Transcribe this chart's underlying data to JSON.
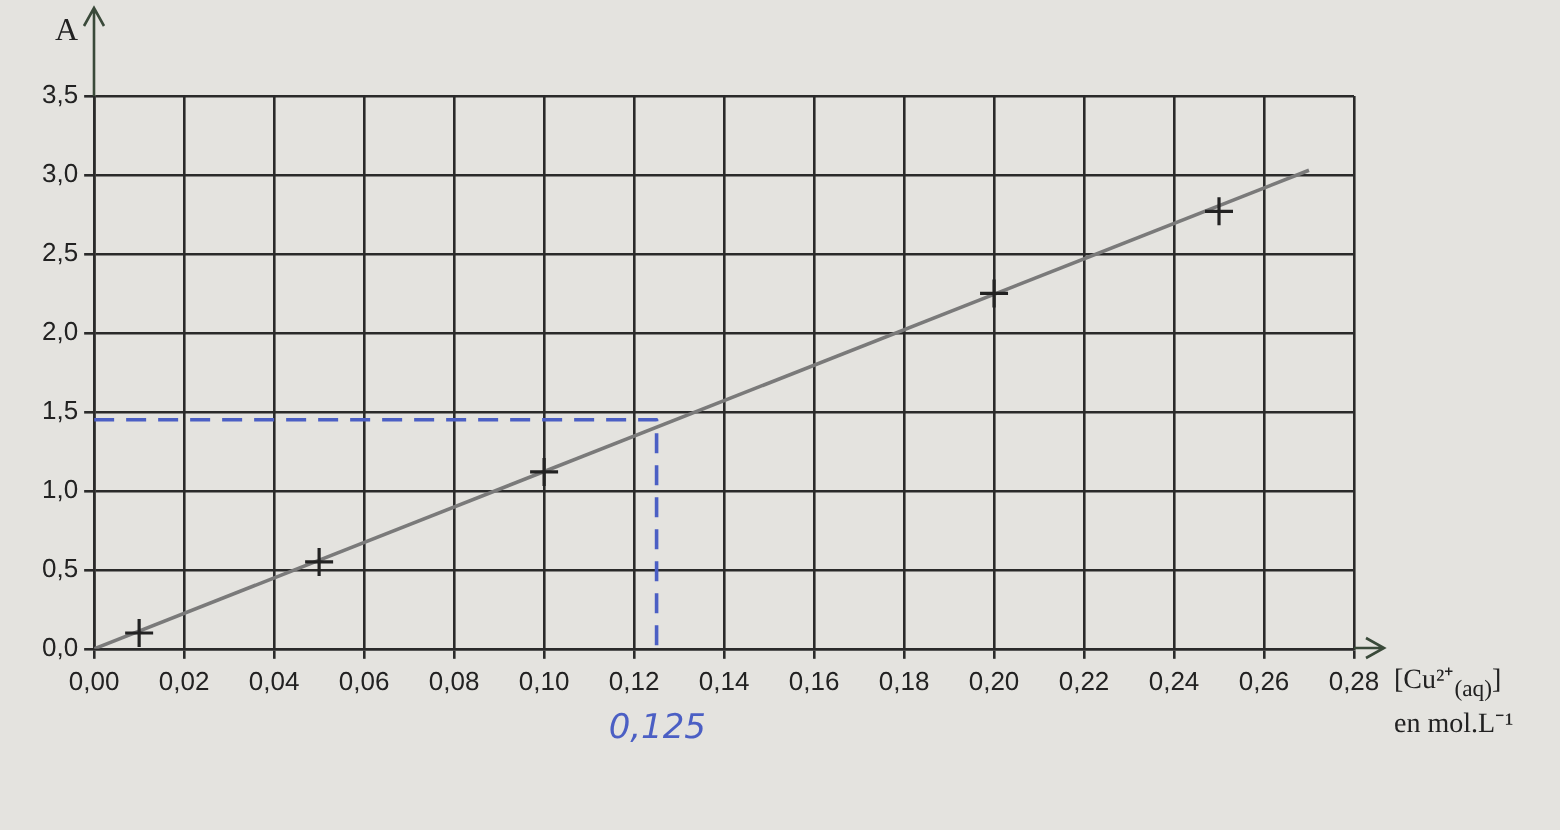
{
  "chart_data": {
    "type": "scatter",
    "ylabel": "A",
    "xlabel": "[Cu²⁺$_{(aq)}$] en mol.L⁻¹",
    "xlim": [
      0,
      0.28
    ],
    "xticks": [
      {
        "value": 0,
        "label": "0,00"
      },
      {
        "value": 0.02,
        "label": "0,02"
      },
      {
        "value": 0.04,
        "label": "0,04"
      },
      {
        "value": 0.06,
        "label": "0,06"
      },
      {
        "value": 0.08,
        "label": "0,08"
      },
      {
        "value": 0.1,
        "label": "0,10"
      },
      {
        "value": 0.12,
        "label": "0,12"
      },
      {
        "value": 0.14,
        "label": "0,14"
      },
      {
        "value": 0.16,
        "label": "0,16"
      },
      {
        "value": 0.18,
        "label": "0,18"
      },
      {
        "value": 0.2,
        "label": "0,20"
      },
      {
        "value": 0.22,
        "label": "0,22"
      },
      {
        "value": 0.24,
        "label": "0,24"
      },
      {
        "value": 0.26,
        "label": "0,26"
      },
      {
        "value": 0.28,
        "label": "0,28"
      }
    ],
    "ylim": [
      0,
      3.5
    ],
    "yticks": [
      {
        "value": 0,
        "label": "0,0"
      },
      {
        "value": 0.5,
        "label": "0,5"
      },
      {
        "value": 1,
        "label": "1,0"
      },
      {
        "value": 1.5,
        "label": "1,5"
      },
      {
        "value": 2,
        "label": "2,0"
      },
      {
        "value": 2.5,
        "label": "2,5"
      },
      {
        "value": 3,
        "label": "3,0"
      },
      {
        "value": 3.5,
        "label": "3,5"
      }
    ],
    "grid": true,
    "legend": false,
    "series": [
      {
        "type": "scatter",
        "color": "#222222",
        "marker": "cross",
        "x": [
          0.01,
          0.05,
          0.1,
          0.2,
          0.25
        ],
        "values": [
          0.1,
          0.55,
          1.12,
          2.25,
          2.77
        ]
      },
      {
        "type": "line",
        "color": "#7a7a7a",
        "marker": "none",
        "line_style": "solid",
        "x": [
          0,
          0.27
        ],
        "values": [
          0,
          3.03
        ]
      },
      {
        "type": "line",
        "color": "#4b5fc4",
        "marker": "none",
        "line_style": "dashed",
        "x": [
          0,
          0.125,
          0.125
        ],
        "values": [
          1.45,
          1.45,
          0
        ]
      }
    ],
    "annotations": [
      "0,125"
    ]
  }
}
